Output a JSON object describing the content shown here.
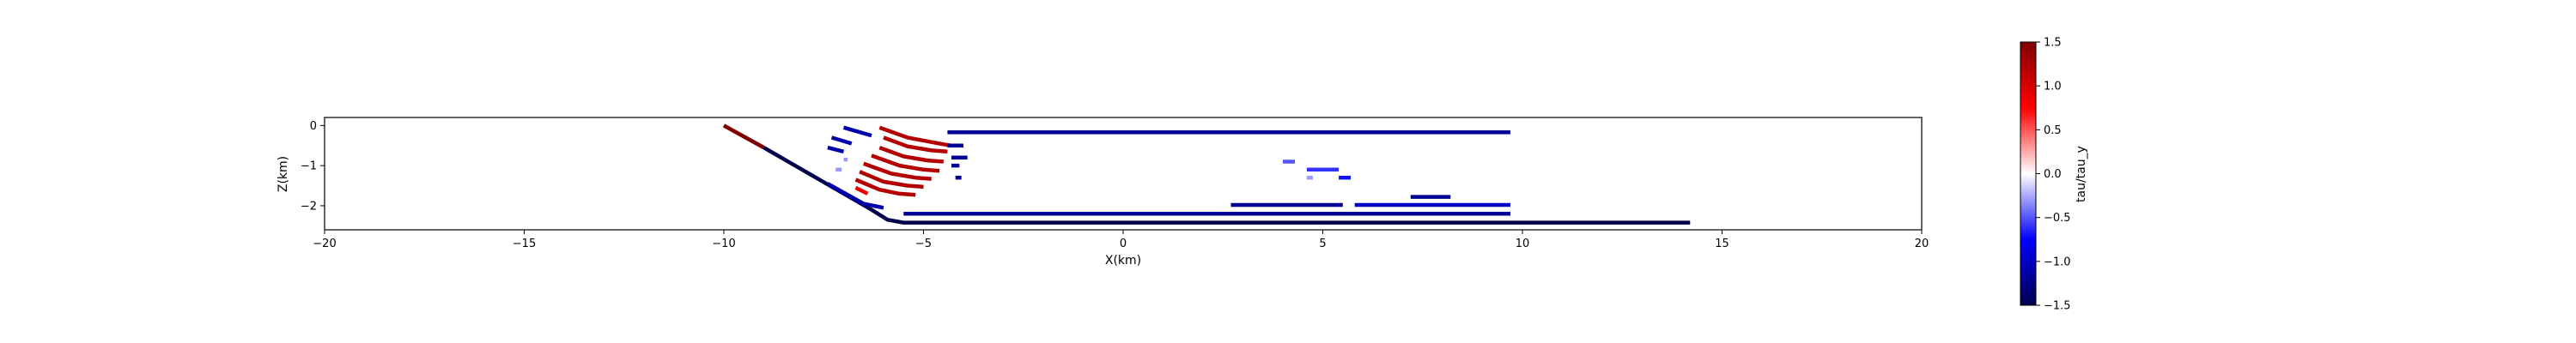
{
  "chart_data": {
    "type": "scatter",
    "title": "",
    "xlabel": "X(km)",
    "ylabel": "Z(km)",
    "xlim": [
      -20,
      20
    ],
    "ylim": [
      -2.6,
      0.2
    ],
    "xticks": [
      -20,
      -15,
      -10,
      -5,
      0,
      5,
      10,
      15,
      20
    ],
    "yticks": [
      0,
      -1,
      -2
    ],
    "grid": false,
    "legend": "none",
    "colorbar": {
      "label": "tau/tau_y",
      "min": -1.5,
      "max": 1.5,
      "ticks": [
        1.5,
        1.0,
        0.5,
        0.0,
        -0.5,
        -1.0,
        -1.5
      ],
      "colormap": "seismic",
      "colors": {
        "low": "#00004c",
        "mid_low": "#0000ff",
        "zero": "#ffffff",
        "mid_high": "#ff0000",
        "high": "#800000"
      }
    },
    "faults": [
      {
        "points": [
          [
            -10.0,
            0.0
          ],
          [
            -9.0,
            -0.55
          ]
        ],
        "value": 1.5
      },
      {
        "points": [
          [
            -9.0,
            -0.55
          ],
          [
            -6.3,
            -2.1
          ],
          [
            -5.9,
            -2.35
          ],
          [
            -5.5,
            -2.42
          ],
          [
            14.2,
            -2.42
          ]
        ],
        "value": -1.5
      },
      {
        "points": [
          [
            -7.4,
            -1.45
          ],
          [
            -6.5,
            -1.95
          ],
          [
            -6.0,
            -2.05
          ]
        ],
        "value": -1.1
      },
      {
        "points": [
          [
            -5.5,
            -2.2
          ],
          [
            9.7,
            -2.2
          ]
        ],
        "value": -1.2
      },
      {
        "points": [
          [
            -4.4,
            -0.17
          ],
          [
            9.7,
            -0.17
          ]
        ],
        "value": -1.2
      },
      {
        "points": [
          [
            2.7,
            -1.98
          ],
          [
            5.5,
            -1.98
          ]
        ],
        "value": -1.2
      },
      {
        "points": [
          [
            5.8,
            -1.98
          ],
          [
            9.7,
            -1.98
          ]
        ],
        "value": -1.0
      },
      {
        "points": [
          [
            7.2,
            -1.78
          ],
          [
            8.2,
            -1.78
          ]
        ],
        "value": -1.2
      },
      {
        "points": [
          [
            4.0,
            -0.9
          ],
          [
            4.3,
            -0.9
          ]
        ],
        "value": -0.5
      },
      {
        "points": [
          [
            4.6,
            -1.1
          ],
          [
            5.4,
            -1.1
          ]
        ],
        "value": -0.6
      },
      {
        "points": [
          [
            5.4,
            -1.3
          ],
          [
            5.7,
            -1.3
          ]
        ],
        "value": -0.7
      },
      {
        "points": [
          [
            -7.0,
            -0.05
          ],
          [
            -6.3,
            -0.25
          ]
        ],
        "value": -1.1
      },
      {
        "points": [
          [
            -7.3,
            -0.3
          ],
          [
            -6.8,
            -0.45
          ]
        ],
        "value": -1.1
      },
      {
        "points": [
          [
            -7.4,
            -0.55
          ],
          [
            -7.0,
            -0.65
          ]
        ],
        "value": -1.1
      },
      {
        "points": [
          [
            -6.7,
            -1.55
          ],
          [
            -6.4,
            -1.7
          ]
        ],
        "value": 0.9
      },
      {
        "points": [
          [
            -6.1,
            -0.05
          ],
          [
            -5.4,
            -0.3
          ],
          [
            -4.6,
            -0.45
          ],
          [
            -4.3,
            -0.5
          ]
        ],
        "value": 1.2
      },
      {
        "points": [
          [
            -6.0,
            -0.3
          ],
          [
            -5.4,
            -0.52
          ],
          [
            -4.8,
            -0.62
          ],
          [
            -4.4,
            -0.65
          ]
        ],
        "value": 1.2
      },
      {
        "points": [
          [
            -6.1,
            -0.55
          ],
          [
            -5.5,
            -0.77
          ],
          [
            -4.9,
            -0.87
          ],
          [
            -4.5,
            -0.9
          ]
        ],
        "value": 1.2
      },
      {
        "points": [
          [
            -6.3,
            -0.75
          ],
          [
            -5.6,
            -1.0
          ],
          [
            -5.0,
            -1.1
          ],
          [
            -4.6,
            -1.13
          ]
        ],
        "value": 1.2
      },
      {
        "points": [
          [
            -6.5,
            -0.95
          ],
          [
            -5.8,
            -1.2
          ],
          [
            -5.2,
            -1.3
          ],
          [
            -4.8,
            -1.33
          ]
        ],
        "value": 1.2
      },
      {
        "points": [
          [
            -6.6,
            -1.15
          ],
          [
            -6.0,
            -1.4
          ],
          [
            -5.4,
            -1.5
          ],
          [
            -5.0,
            -1.53
          ]
        ],
        "value": 1.2
      },
      {
        "points": [
          [
            -6.7,
            -1.35
          ],
          [
            -6.1,
            -1.6
          ],
          [
            -5.6,
            -1.7
          ],
          [
            -5.2,
            -1.73
          ]
        ],
        "value": 1.2
      },
      {
        "points": [
          [
            -4.4,
            -0.5
          ],
          [
            -4.0,
            -0.5
          ]
        ],
        "value": -1.2
      },
      {
        "points": [
          [
            -4.3,
            -0.8
          ],
          [
            -3.9,
            -0.8
          ]
        ],
        "value": -1.2
      },
      {
        "points": [
          [
            -4.3,
            -1.0
          ],
          [
            -4.1,
            -1.0
          ]
        ],
        "value": -1.2
      },
      {
        "points": [
          [
            -4.2,
            -1.3
          ],
          [
            -4.05,
            -1.3
          ]
        ],
        "value": -1.2
      },
      {
        "points": [
          [
            -7.0,
            -0.85
          ],
          [
            -6.9,
            -0.85
          ]
        ],
        "value": -0.3
      },
      {
        "points": [
          [
            -7.2,
            -1.1
          ],
          [
            -7.05,
            -1.1
          ]
        ],
        "value": -0.3
      },
      {
        "points": [
          [
            4.6,
            -1.3
          ],
          [
            4.75,
            -1.3
          ]
        ],
        "value": -0.3
      }
    ]
  }
}
